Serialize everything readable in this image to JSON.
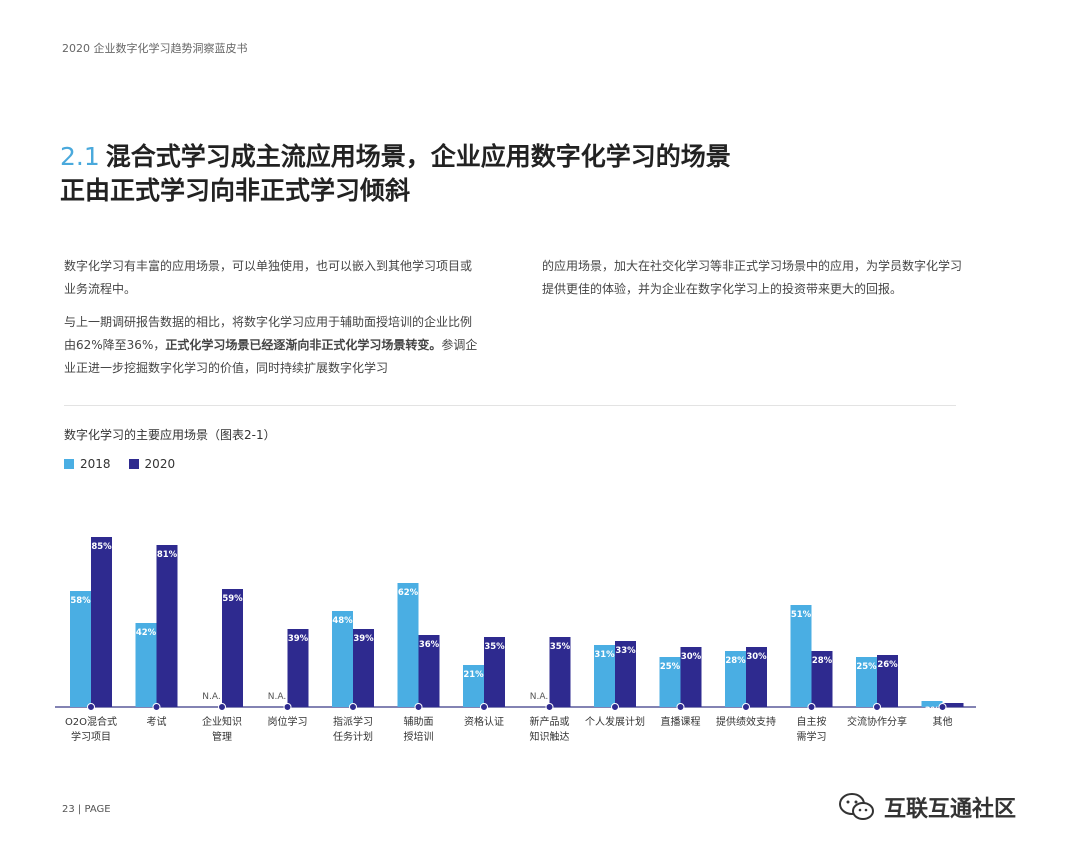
{
  "header": {
    "text": "2020 企业数字化学习趋势洞察蓝皮书"
  },
  "section": {
    "number": "2.1",
    "title_line1": "混合式学习成主流应用场景，企业应用数字化学习的场景",
    "title_line2": "正由正式学习向非正式学习倾斜"
  },
  "body": {
    "p1": "数字化学习有丰富的应用场景，可以单独使用，也可以嵌入到其他学习项目或业务流程中。",
    "p2_a": "与上一期调研报告数据的相比，将数字化学习应用于辅助面授培训的企业比例由62%降至36%，",
    "p2_bold": "正式化学习场景已经逐渐向非正式化学习场景转变。",
    "p2_b": "参调企业正进一步挖掘数字化学习的价值，同时持续扩展数字化学习",
    "right": "的应用场景，加大在社交化学习等非正式学习场景中的应用，为学员数字化学习提供更佳的体验，并为企业在数字化学习上的投资带来更大的回报。"
  },
  "chart_data": {
    "type": "bar",
    "title": "数字化学习的主要应用场景（图表2-1）",
    "categories": [
      "O2O混合式\n学习项目",
      "考试",
      "企业知识\n管理",
      "岗位学习",
      "指派学习\n任务计划",
      "辅助面\n授培训",
      "资格认证",
      "新产品或\n知识触达",
      "个人发展计划",
      "直播课程",
      "提供绩效支持",
      "自主按\n需学习",
      "交流协作分享",
      "其他"
    ],
    "series": [
      {
        "name": "2018",
        "color": "#4aaee3",
        "values": [
          58,
          42,
          null,
          null,
          48,
          62,
          21,
          null,
          31,
          25,
          28,
          51,
          25,
          3
        ]
      },
      {
        "name": "2020",
        "color": "#2e2a8f",
        "values": [
          85,
          81,
          59,
          39,
          39,
          36,
          35,
          35,
          33,
          30,
          30,
          28,
          26,
          2
        ]
      }
    ],
    "na_label": "N.A.",
    "ylim": [
      0,
      100
    ]
  },
  "footer": {
    "page": "23 | PAGE"
  },
  "watermark": {
    "text": "互联互通社区"
  }
}
